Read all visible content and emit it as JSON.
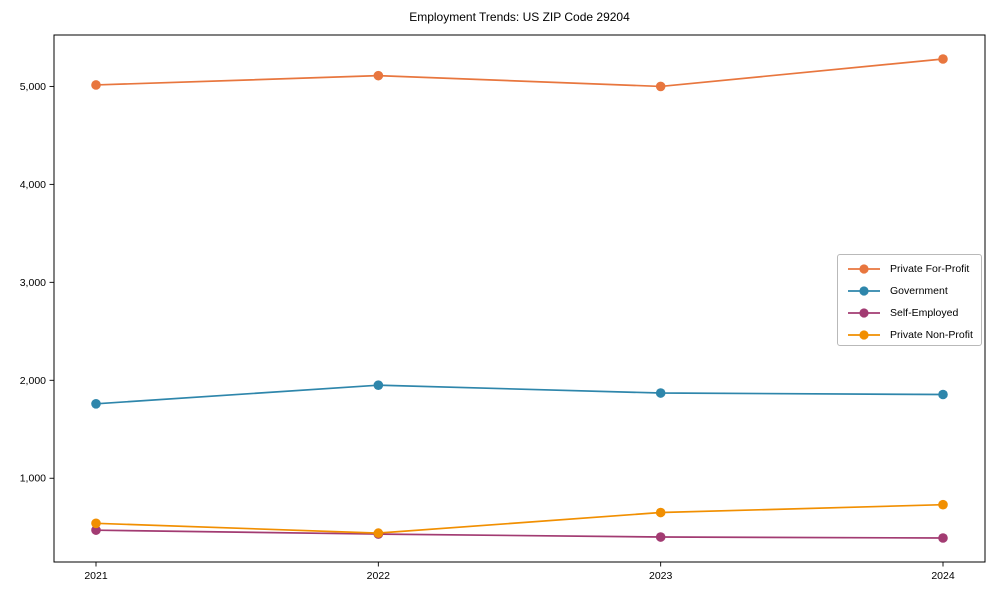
{
  "chart_data": {
    "type": "line",
    "title": "Employment Trends: US ZIP Code 29204",
    "xlabel": "",
    "ylabel": "",
    "x": [
      2021,
      2022,
      2023,
      2024
    ],
    "xtick_labels": [
      "2021",
      "2022",
      "2023",
      "2024"
    ],
    "ytick_values": [
      1000,
      2000,
      3000,
      4000,
      5000
    ],
    "ytick_labels": [
      "1,000",
      "2,000",
      "3,000",
      "4,000",
      "5,000"
    ],
    "ylim": [
      145,
      5525
    ],
    "grid": false,
    "legend_position": "center right",
    "axes_box": true,
    "series": [
      {
        "name": "Private For-Profit",
        "color": "#E8763E",
        "values": [
          5015,
          5110,
          5000,
          5280
        ]
      },
      {
        "name": "Government",
        "color": "#2E86AB",
        "values": [
          1760,
          1950,
          1870,
          1855
        ]
      },
      {
        "name": "Self-Employed",
        "color": "#A23B72",
        "values": [
          470,
          430,
          400,
          390
        ]
      },
      {
        "name": "Private Non-Profit",
        "color": "#F18F01",
        "values": [
          540,
          440,
          650,
          730
        ]
      }
    ]
  }
}
